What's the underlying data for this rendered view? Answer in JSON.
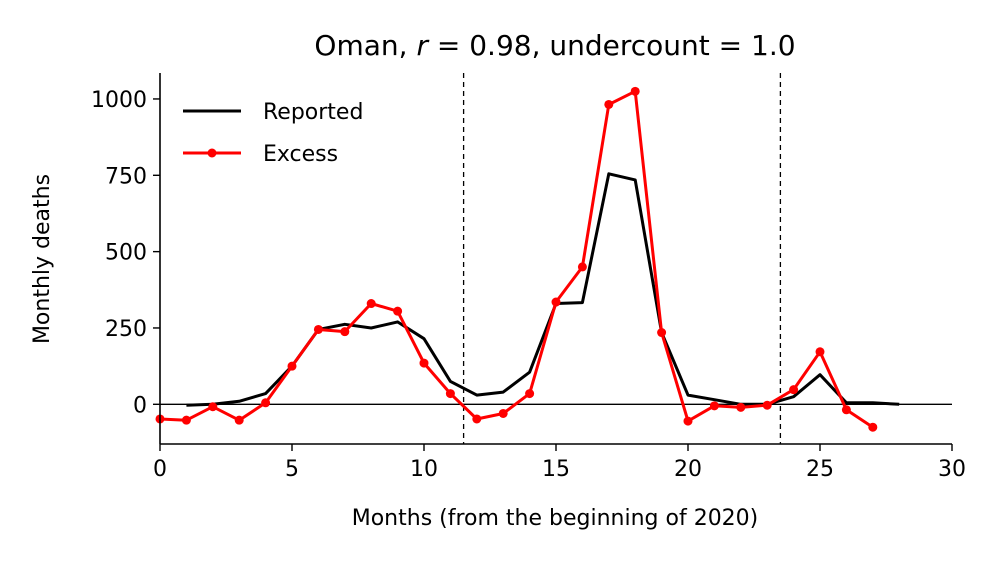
{
  "chart_data": {
    "type": "line",
    "title": "Oman, r = 0.98, undercount = 1.0",
    "title_parts": {
      "prefix": "Oman, ",
      "var": "r",
      "mid": " = 0.98, undercount = 1.0"
    },
    "xlabel": "Months (from the beginning of 2020)",
    "ylabel": "Monthly deaths",
    "xlim": [
      0,
      30
    ],
    "ylim": [
      -130,
      1085
    ],
    "x_ticks": [
      0,
      5,
      10,
      15,
      20,
      25,
      30
    ],
    "y_ticks": [
      0,
      250,
      500,
      750,
      1000
    ],
    "x_tick_labels": [
      "0",
      "5",
      "10",
      "15",
      "20",
      "25",
      "30"
    ],
    "y_tick_labels": [
      "0",
      "250",
      "500",
      "750",
      "1000"
    ],
    "vertical_lines": [
      11.5,
      23.5
    ],
    "horizontal_line": 0,
    "grid": false,
    "legend_position": "top-left",
    "series": [
      {
        "name": "Reported",
        "color": "#000000",
        "marker": "none",
        "x": [
          1,
          2,
          3,
          4,
          5,
          6,
          7,
          8,
          9,
          10,
          11,
          12,
          13,
          14,
          15,
          16,
          17,
          18,
          19,
          20,
          21,
          22,
          23,
          24,
          25,
          26,
          27,
          28
        ],
        "values": [
          -3,
          0,
          10,
          35,
          125,
          245,
          262,
          250,
          270,
          215,
          75,
          30,
          40,
          105,
          330,
          333,
          755,
          735,
          235,
          30,
          15,
          0,
          0,
          25,
          97,
          5,
          5,
          0
        ]
      },
      {
        "name": "Excess",
        "color": "#ff0000",
        "marker": "circle",
        "x": [
          0,
          1,
          2,
          3,
          4,
          5,
          6,
          7,
          8,
          9,
          10,
          11,
          12,
          13,
          14,
          15,
          16,
          17,
          18,
          19,
          20,
          21,
          22,
          23,
          24,
          25,
          26,
          27
        ],
        "values": [
          -48,
          -52,
          -8,
          -52,
          5,
          125,
          245,
          238,
          330,
          305,
          135,
          35,
          -48,
          -30,
          35,
          335,
          450,
          982,
          1025,
          235,
          -55,
          -5,
          -10,
          -3,
          48,
          172,
          -18,
          -75
        ]
      }
    ]
  }
}
